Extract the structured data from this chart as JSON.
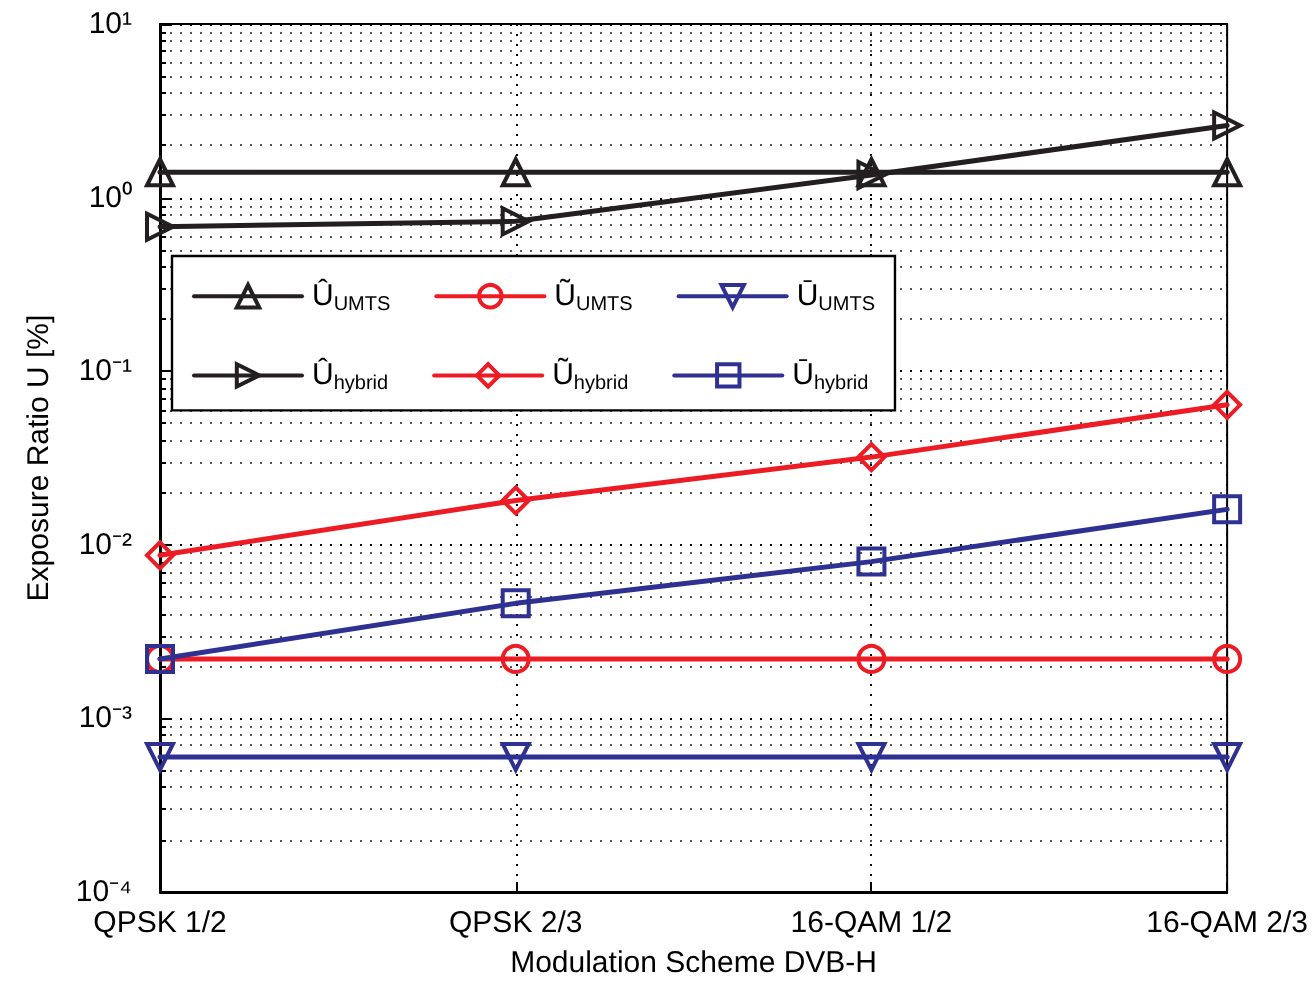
{
  "chart_data": {
    "type": "line",
    "xlabel": "Modulation Scheme DVB-H",
    "ylabel": "Exposure Ratio U [%]",
    "categories": [
      "QPSK 1/2",
      "QPSK 2/3",
      "16-QAM 1/2",
      "16-QAM 2/3"
    ],
    "log": "y",
    "ylim": [
      0.0001,
      10
    ],
    "yticks": [
      {
        "value": 0.0001,
        "label": "10⁻⁴"
      },
      {
        "value": 0.001,
        "label": "10⁻³"
      },
      {
        "value": 0.01,
        "label": "10⁻²"
      },
      {
        "value": 0.1,
        "label": "10⁻¹"
      },
      {
        "value": 1,
        "label": "10⁰"
      },
      {
        "value": 10,
        "label": "10¹"
      }
    ],
    "grid": true,
    "legend": "top left",
    "line_style": "solid",
    "series": [
      {
        "name": "Û$_{UMTS}$",
        "color": "#231f20",
        "marker": "triangle",
        "values": [
          1.4,
          1.4,
          1.4,
          1.4
        ]
      },
      {
        "name": "Ũ$_{UMTS}$",
        "color": "#ed1c24",
        "marker": "circle",
        "values": [
          0.0022,
          0.0022,
          0.0022,
          0.0022
        ]
      },
      {
        "name": "Ū$_{UMTS}$",
        "color": "#2e3192",
        "marker": "triangle-down",
        "values": [
          0.0006,
          0.0006,
          0.0006,
          0.0006
        ]
      },
      {
        "name": "Û$_{hybrid}$",
        "color": "#231f20",
        "marker": "triangle-right",
        "values": [
          0.68,
          0.73,
          1.35,
          2.6
        ]
      },
      {
        "name": "Ũ$_{hybrid}$",
        "color": "#ed1c24",
        "marker": "diamond",
        "values": [
          0.0087,
          0.018,
          0.032,
          0.064
        ]
      },
      {
        "name": "Ū$_{hybrid}$",
        "color": "#2e3192",
        "marker": "square",
        "values": [
          0.0022,
          0.0046,
          0.008,
          0.016
        ]
      }
    ]
  }
}
